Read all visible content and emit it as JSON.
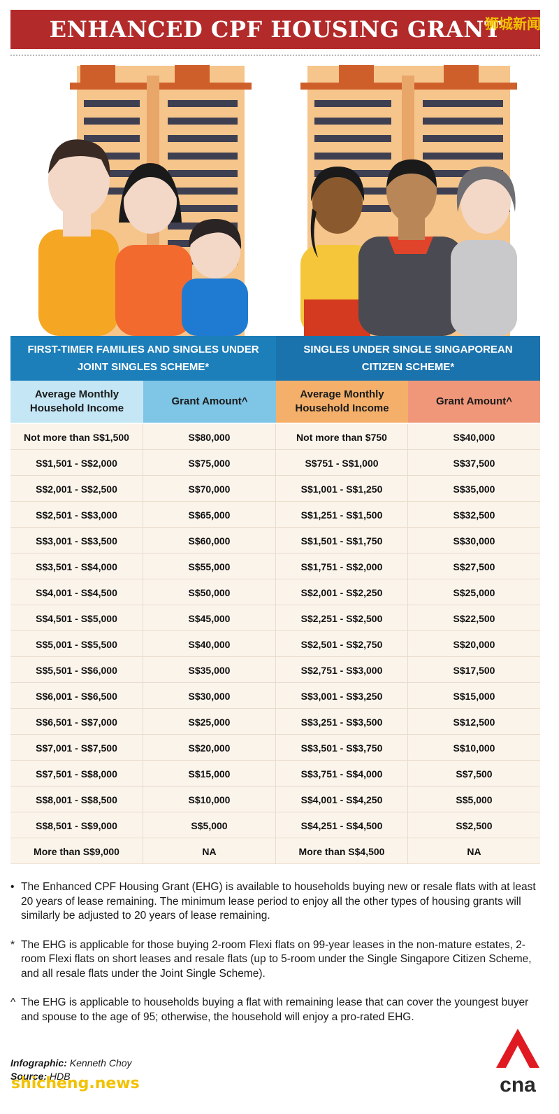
{
  "title": "ENHANCED CPF HOUSING GRANT",
  "watermark_top": "狮城新闻",
  "schemes": {
    "left_title": "FIRST-TIMER FAMILIES AND SINGLES UNDER JOINT SINGLES SCHEME*",
    "right_title": "SINGLES UNDER SINGLE SINGAPOREAN CITIZEN SCHEME*"
  },
  "columns": {
    "income": "Average Monthly Household Income",
    "grant": "Grant Amount^"
  },
  "rows": [
    {
      "fam_income": "Not more than S$1,500",
      "fam_grant": "S$80,000",
      "single_income": "Not more than $750",
      "single_grant": "S$40,000"
    },
    {
      "fam_income": "S$1,501 - S$2,000",
      "fam_grant": "S$75,000",
      "single_income": "S$751 - S$1,000",
      "single_grant": "S$37,500"
    },
    {
      "fam_income": "S$2,001 - S$2,500",
      "fam_grant": "S$70,000",
      "single_income": "S$1,001 - S$1,250",
      "single_grant": "S$35,000"
    },
    {
      "fam_income": "S$2,501 - S$3,000",
      "fam_grant": "S$65,000",
      "single_income": "S$1,251 - S$1,500",
      "single_grant": "S$32,500"
    },
    {
      "fam_income": "S$3,001 - S$3,500",
      "fam_grant": "S$60,000",
      "single_income": "S$1,501 - S$1,750",
      "single_grant": "S$30,000"
    },
    {
      "fam_income": "S$3,501 - S$4,000",
      "fam_grant": "S$55,000",
      "single_income": "S$1,751 - S$2,000",
      "single_grant": "S$27,500"
    },
    {
      "fam_income": "S$4,001 - S$4,500",
      "fam_grant": "S$50,000",
      "single_income": "S$2,001 - S$2,250",
      "single_grant": "S$25,000"
    },
    {
      "fam_income": "S$4,501 - S$5,000",
      "fam_grant": "S$45,000",
      "single_income": "S$2,251 - S$2,500",
      "single_grant": "S$22,500"
    },
    {
      "fam_income": "S$5,001 - S$5,500",
      "fam_grant": "S$40,000",
      "single_income": "S$2,501 - S$2,750",
      "single_grant": "S$20,000"
    },
    {
      "fam_income": "S$5,501 - S$6,000",
      "fam_grant": "S$35,000",
      "single_income": "S$2,751 - S$3,000",
      "single_grant": "S$17,500"
    },
    {
      "fam_income": "S$6,001 - S$6,500",
      "fam_grant": "S$30,000",
      "single_income": "S$3,001 - S$3,250",
      "single_grant": "S$15,000"
    },
    {
      "fam_income": "S$6,501 - S$7,000",
      "fam_grant": "S$25,000",
      "single_income": "S$3,251 - S$3,500",
      "single_grant": "S$12,500"
    },
    {
      "fam_income": "S$7,001 - S$7,500",
      "fam_grant": "S$20,000",
      "single_income": "S$3,501 - S$3,750",
      "single_grant": "S$10,000"
    },
    {
      "fam_income": "S$7,501 - S$8,000",
      "fam_grant": "S$15,000",
      "single_income": "S$3,751 - S$4,000",
      "single_grant": "S$7,500"
    },
    {
      "fam_income": "S$8,001 - S$8,500",
      "fam_grant": "S$10,000",
      "single_income": "S$4,001 - S$4,250",
      "single_grant": "S$5,000"
    },
    {
      "fam_income": "S$8,501 - S$9,000",
      "fam_grant": "S$5,000",
      "single_income": "S$4,251 - S$4,500",
      "single_grant": "S$2,500"
    },
    {
      "fam_income": "More than S$9,000",
      "fam_grant": "NA",
      "single_income": "More than S$4,500",
      "single_grant": "NA"
    }
  ],
  "notes": [
    {
      "marker": "•",
      "text": "The Enhanced CPF Housing Grant (EHG) is available to households buying new or resale flats with at least 20 years of lease remaining. The minimum lease period to enjoy all the other types of housing grants will similarly be adjusted to 20 years of lease remaining."
    },
    {
      "marker": "*",
      "text": "The EHG is applicable for those buying 2-room Flexi flats on 99-year leases in the non-mature estates, 2-room Flexi flats on short leases and resale flats (up to 5-room under the Single Singapore Citizen Scheme, and all resale flats under the Joint Single Scheme)."
    },
    {
      "marker": "^",
      "text": "The EHG is applicable to households buying a flat with remaining lease that can cover the youngest buyer and spouse to the age of 95; otherwise, the household will enjoy a pro-rated EHG."
    }
  ],
  "credits": {
    "infographic_label": "Infographic:",
    "infographic_value": "Kenneth Choy",
    "source_label": "Source:",
    "source_value": "HDB"
  },
  "watermark_bottom": "shicheng.news",
  "logo_text": "cna",
  "colors": {
    "title_red": "#b22a2a",
    "scheme_blue": "#1c7fba",
    "fam_income_col": "#c4e6f5",
    "fam_grant_col": "#7fc5e6",
    "single_income_col": "#f4b06a",
    "single_grant_col": "#f0977a",
    "row_bg": "#fbf4eb"
  }
}
